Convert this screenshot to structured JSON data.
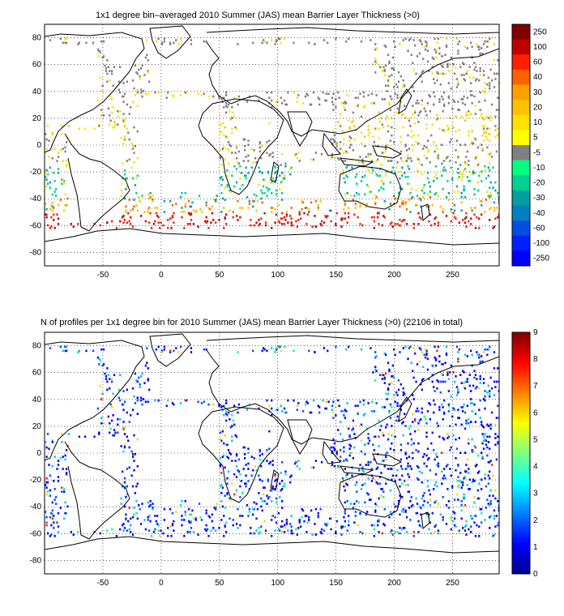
{
  "panels": [
    {
      "title": "1x1 degree bin–averaged 2010 Summer (JAS) mean Barrier Layer Thickness (>0)",
      "x_ticks": [
        "-50",
        "0",
        "50",
        "100",
        "150",
        "200",
        "250"
      ],
      "y_ticks": [
        "80",
        "60",
        "40",
        "20",
        "0",
        "-20",
        "-40",
        "-60",
        "-80"
      ],
      "colorbar_labels": [
        "250",
        "100",
        "60",
        "40",
        "30",
        "20",
        "10",
        "5",
        "-5",
        "-10",
        "-20",
        "-30",
        "-40",
        "-60",
        "-100",
        "-250"
      ],
      "colorbar_colors": [
        "#7f0000",
        "#bf0000",
        "#ff2000",
        "#ff6000",
        "#ff9f00",
        "#ffc000",
        "#ffe000",
        "#ffff00",
        "#808080",
        "#00ff80",
        "#00d090",
        "#00a0a0",
        "#0080c0",
        "#0050e0",
        "#0020ff",
        "#0000ff"
      ]
    },
    {
      "title": "N of profiles per 1x1 degree bin for 2010 Summer (JAS) mean Barrier Layer Thickness (>0) (22106 in total)",
      "x_ticks": [
        "-50",
        "0",
        "50",
        "100",
        "150",
        "200",
        "250"
      ],
      "y_ticks": [
        "80",
        "60",
        "40",
        "20",
        "0",
        "-20",
        "-40",
        "-60",
        "-80"
      ],
      "colorbar_ticks": [
        "9",
        "8",
        "7",
        "6",
        "5",
        "4",
        "3",
        "2",
        "1",
        "0"
      ]
    }
  ]
}
